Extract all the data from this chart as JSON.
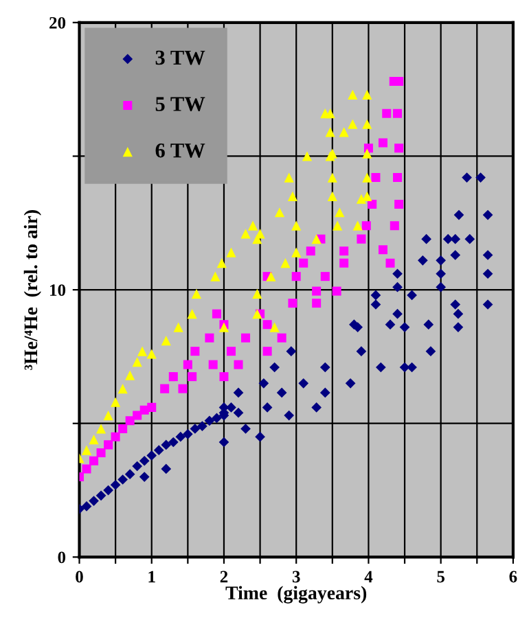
{
  "chart_data": {
    "type": "scatter",
    "xlabel": "Time  (gigayears)",
    "ylabel": "³He/⁴He  (rel. to air)",
    "xlim": [
      0,
      6
    ],
    "ylim": [
      0,
      20
    ],
    "xticks": [
      0,
      {
        "value": 0.5,
        "label": null
      },
      1,
      {
        "value": 1.5,
        "label": null
      },
      2,
      {
        "value": 2.5,
        "label": null
      },
      3,
      {
        "value": 3.5,
        "label": null
      },
      4,
      {
        "value": 4.5,
        "label": null
      },
      5,
      {
        "value": 5.5,
        "label": null
      },
      6
    ],
    "yticks": [
      0,
      {
        "value": 5,
        "label": null
      },
      10,
      {
        "value": 15,
        "label": null
      },
      20
    ],
    "grid": true,
    "legend": "top left",
    "series": [
      {
        "name": "3 TW",
        "color": "#000080",
        "marker": "diamond",
        "x": [
          0,
          0.1,
          0.2,
          0.3,
          0.4,
          0.5,
          0.6,
          0.7,
          0.8,
          0.9,
          1.0,
          1.1,
          1.2,
          1.3,
          1.4,
          1.5,
          1.6,
          1.7,
          1.8,
          1.9,
          2.0,
          2.1,
          2.2,
          0.9,
          1.2,
          2.0,
          2.5,
          2.3,
          2.2,
          2.8,
          3.4,
          2.55,
          3.1,
          3.75,
          2.7,
          3.4,
          4.17,
          4.5,
          4.6,
          2.93,
          3.9,
          4.86,
          3.8,
          4.3,
          4.83,
          2.0,
          2.6,
          3.28,
          2.0,
          2.9,
          3.85,
          4.5,
          5.24,
          4.4,
          5.24,
          5.2,
          5.65,
          4.1,
          4.4,
          5.0,
          4.4,
          5.0,
          5.65,
          5.2,
          5.65,
          4.75,
          5.0,
          4.8,
          5.1,
          5.2,
          5.4,
          5.25,
          5.65,
          5.36,
          5.55,
          4.1,
          4.6
        ],
        "values": [
          1.8,
          1.9,
          2.1,
          2.3,
          2.5,
          2.7,
          2.9,
          3.1,
          3.4,
          3.6,
          3.8,
          4.0,
          4.2,
          4.3,
          4.5,
          4.6,
          4.8,
          4.9,
          5.1,
          5.2,
          5.4,
          5.6,
          5.4,
          3.0,
          3.3,
          4.3,
          4.5,
          4.8,
          6.15,
          6.15,
          6.15,
          6.5,
          6.5,
          6.5,
          7.1,
          7.1,
          7.1,
          7.1,
          7.1,
          7.7,
          7.7,
          7.7,
          8.7,
          8.7,
          8.7,
          5.6,
          5.6,
          5.6,
          5.3,
          5.3,
          8.6,
          8.6,
          8.6,
          9.1,
          9.1,
          9.45,
          9.45,
          9.45,
          10.1,
          10.1,
          10.6,
          10.6,
          10.6,
          11.3,
          11.3,
          11.1,
          11.1,
          11.9,
          11.9,
          11.9,
          11.9,
          12.8,
          12.8,
          14.2,
          14.2,
          9.8,
          9.8
        ]
      },
      {
        "name": "5 TW",
        "color": "#ff00ff",
        "marker": "square",
        "x": [
          0,
          0.1,
          0.2,
          0.3,
          0.4,
          0.5,
          0.6,
          0.7,
          0.8,
          0.9,
          1.0,
          1.18,
          1.43,
          1.3,
          1.56,
          2.0,
          1.5,
          1.85,
          2.2,
          1.6,
          2.1,
          2.6,
          1.8,
          2.3,
          2.8,
          2.0,
          2.6,
          1.9,
          2.5,
          2.95,
          3.28,
          3.28,
          3.56,
          2.6,
          3.0,
          3.4,
          3.1,
          3.66,
          3.2,
          3.66,
          3.34,
          3.9,
          3.97,
          4.36,
          4.05,
          4.42,
          4.1,
          4.4,
          4.0,
          4.42,
          4.2,
          4.25,
          4.4,
          4.35,
          4.42,
          4.2,
          4.3
        ],
        "values": [
          3.0,
          3.3,
          3.6,
          3.9,
          4.2,
          4.5,
          4.8,
          5.1,
          5.3,
          5.5,
          5.6,
          6.3,
          6.3,
          6.75,
          6.75,
          6.75,
          7.2,
          7.2,
          7.2,
          7.7,
          7.7,
          7.7,
          8.2,
          8.2,
          8.2,
          8.7,
          8.7,
          9.1,
          9.1,
          9.5,
          9.5,
          9.95,
          9.95,
          10.5,
          10.5,
          10.5,
          11.0,
          11.0,
          11.45,
          11.45,
          11.9,
          11.9,
          12.4,
          12.4,
          13.2,
          13.2,
          14.2,
          14.2,
          15.3,
          15.3,
          15.5,
          16.6,
          16.6,
          17.8,
          17.8,
          11.5,
          11.0
        ]
      },
      {
        "name": "6 TW",
        "color": "#ffff00",
        "marker": "triangle",
        "x": [
          0,
          0.1,
          0.2,
          0.3,
          0.4,
          0.5,
          0.6,
          0.7,
          0.8,
          0.87,
          1.0,
          1.2,
          1.37,
          2.0,
          2.7,
          1.56,
          2.46,
          1.62,
          2.46,
          1.88,
          2.65,
          1.97,
          2.85,
          2.1,
          3.0,
          2.46,
          3.28,
          2.4,
          3.0,
          3.57,
          2.77,
          3.6,
          2.95,
          3.5,
          3.98,
          2.9,
          3.5,
          3.98,
          3.15,
          3.47,
          3.5,
          3.98,
          3.47,
          3.66,
          3.78,
          3.98,
          3.4,
          3.47,
          3.78,
          3.98,
          2.3,
          2.5,
          3.9,
          3.85
        ],
        "values": [
          3.7,
          4.0,
          4.4,
          4.8,
          5.3,
          5.8,
          6.3,
          6.8,
          7.3,
          7.7,
          7.6,
          8.1,
          8.6,
          8.6,
          8.6,
          9.1,
          9.1,
          9.85,
          9.85,
          10.5,
          10.5,
          11.0,
          11.0,
          11.4,
          11.4,
          11.9,
          11.9,
          12.4,
          12.4,
          12.4,
          12.9,
          12.9,
          13.5,
          13.5,
          13.5,
          14.2,
          14.2,
          14.2,
          15.0,
          15.0,
          15.1,
          15.1,
          15.9,
          15.9,
          16.2,
          16.2,
          16.6,
          16.6,
          17.3,
          17.3,
          12.1,
          12.1,
          13.4,
          12.4
        ]
      }
    ]
  }
}
